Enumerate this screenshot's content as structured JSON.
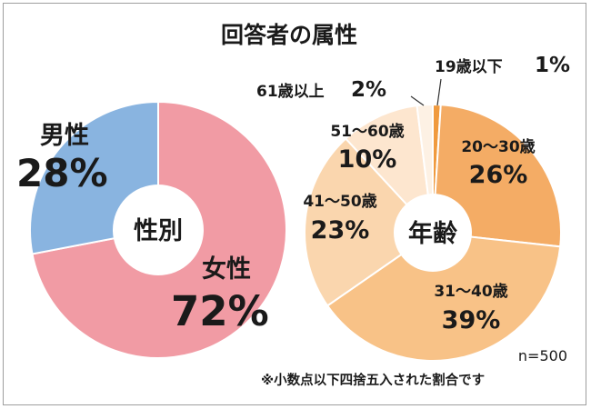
{
  "title": "回答者の属性",
  "sample_size": "n=500",
  "footnote": "※小数点以下四捨五入された割合です",
  "chart_data": [
    {
      "type": "pie",
      "center_label": "性別",
      "slices": [
        {
          "name": "女性",
          "value": 72,
          "pct_label": "72%",
          "color": "#f19ba4"
        },
        {
          "name": "男性",
          "value": 28,
          "pct_label": "28%",
          "color": "#89b4e0"
        }
      ]
    },
    {
      "type": "pie",
      "center_label": "年齢",
      "slices": [
        {
          "name": "19歳以下",
          "value": 1,
          "pct_label": "1%",
          "color": "#f09a3e"
        },
        {
          "name": "20～30歳",
          "value": 26,
          "pct_label": "26%",
          "color": "#f4ac65"
        },
        {
          "name": "31～40歳",
          "value": 39,
          "pct_label": "39%",
          "color": "#f8c287"
        },
        {
          "name": "41～50歳",
          "value": 23,
          "pct_label": "23%",
          "color": "#fad6ae"
        },
        {
          "name": "51～60歳",
          "value": 10,
          "pct_label": "10%",
          "color": "#fde6cf"
        },
        {
          "name": "61歳以上",
          "value": 2,
          "pct_label": "2%",
          "color": "#fdf1e4"
        }
      ]
    }
  ]
}
